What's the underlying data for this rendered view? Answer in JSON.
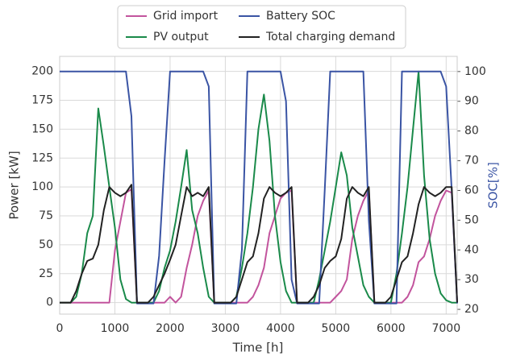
{
  "chart_data": {
    "type": "line",
    "xlabel": "Time [h]",
    "ylabel": "Power [kW]",
    "y2label": "SOC[%]",
    "x": [
      0,
      100,
      200,
      300,
      400,
      500,
      600,
      700,
      800,
      900,
      1000,
      1100,
      1200,
      1300,
      1400,
      1500,
      1600,
      1700,
      1800,
      1900,
      2000,
      2100,
      2200,
      2300,
      2400,
      2500,
      2600,
      2700,
      2800,
      2900,
      3000,
      3100,
      3200,
      3300,
      3400,
      3500,
      3600,
      3700,
      3800,
      3900,
      4000,
      4100,
      4200,
      4300,
      4400,
      4500,
      4600,
      4700,
      4800,
      4900,
      5000,
      5100,
      5200,
      5300,
      5400,
      5500,
      5600,
      5700,
      5800,
      5900,
      6000,
      6100,
      6200,
      6300,
      6400,
      6500,
      6600,
      6700,
      6800,
      6900,
      7000,
      7100,
      7200
    ],
    "series": [
      {
        "name": "Grid import",
        "color": "#c2549d",
        "values": [
          0,
          0,
          0,
          0,
          0,
          0,
          0,
          0,
          0,
          0,
          45,
          70,
          95,
          98,
          0,
          0,
          0,
          0,
          0,
          0,
          5,
          0,
          5,
          30,
          50,
          75,
          88,
          97,
          0,
          0,
          0,
          0,
          0,
          0,
          0,
          5,
          15,
          30,
          60,
          75,
          90,
          95,
          97,
          0,
          0,
          0,
          0,
          0,
          0,
          0,
          5,
          10,
          20,
          55,
          75,
          88,
          97,
          0,
          0,
          0,
          0,
          0,
          0,
          5,
          15,
          35,
          40,
          55,
          75,
          88,
          97,
          95,
          0
        ]
      },
      {
        "name": "PV output",
        "color": "#1a8a4a",
        "values": [
          0,
          0,
          0,
          5,
          25,
          60,
          75,
          168,
          135,
          100,
          65,
          20,
          3,
          0,
          0,
          0,
          0,
          0,
          10,
          30,
          45,
          70,
          100,
          132,
          80,
          60,
          30,
          5,
          0,
          0,
          0,
          0,
          5,
          30,
          60,
          100,
          150,
          180,
          140,
          75,
          35,
          10,
          0,
          0,
          0,
          0,
          0,
          20,
          45,
          70,
          100,
          130,
          110,
          65,
          40,
          15,
          5,
          0,
          0,
          0,
          0,
          25,
          60,
          100,
          150,
          200,
          110,
          55,
          25,
          8,
          2,
          0,
          0
        ]
      },
      {
        "name": "Battery SOC",
        "color": "#3a54a4",
        "axis": "y2",
        "values": [
          100,
          100,
          100,
          100,
          100,
          100,
          100,
          100,
          100,
          100,
          100,
          100,
          100,
          85,
          22,
          22,
          22,
          22,
          38,
          70,
          100,
          100,
          100,
          100,
          100,
          100,
          100,
          95,
          22,
          22,
          22,
          22,
          22,
          40,
          100,
          100,
          100,
          100,
          100,
          100,
          100,
          90,
          30,
          22,
          22,
          22,
          22,
          22,
          60,
          100,
          100,
          100,
          100,
          100,
          100,
          100,
          50,
          22,
          22,
          22,
          22,
          22,
          100,
          100,
          100,
          100,
          100,
          100,
          100,
          100,
          95,
          60,
          22
        ]
      },
      {
        "name": "Total charging demand",
        "color": "#222222",
        "values": [
          0,
          0,
          0,
          10,
          25,
          36,
          38,
          50,
          80,
          100,
          95,
          92,
          95,
          102,
          0,
          0,
          0,
          5,
          15,
          25,
          37,
          50,
          75,
          100,
          92,
          95,
          92,
          100,
          0,
          0,
          0,
          0,
          5,
          20,
          35,
          40,
          60,
          90,
          100,
          95,
          92,
          95,
          100,
          0,
          0,
          0,
          5,
          15,
          30,
          36,
          40,
          55,
          90,
          100,
          95,
          92,
          100,
          0,
          0,
          0,
          5,
          20,
          35,
          40,
          60,
          85,
          100,
          95,
          92,
          95,
          100,
          100,
          0
        ]
      }
    ],
    "xlim": [
      0,
      7200
    ],
    "xticks": [
      0,
      1000,
      2000,
      3000,
      4000,
      5000,
      6000,
      7000
    ],
    "ylim": [
      -10,
      213
    ],
    "yticks": [
      0,
      25,
      50,
      75,
      100,
      125,
      150,
      175,
      200
    ],
    "y2lim": [
      18.4,
      105.1
    ],
    "y2ticks": [
      20,
      30,
      40,
      50,
      60,
      70,
      80,
      90,
      100
    ],
    "grid": true,
    "legend": "upper center"
  }
}
